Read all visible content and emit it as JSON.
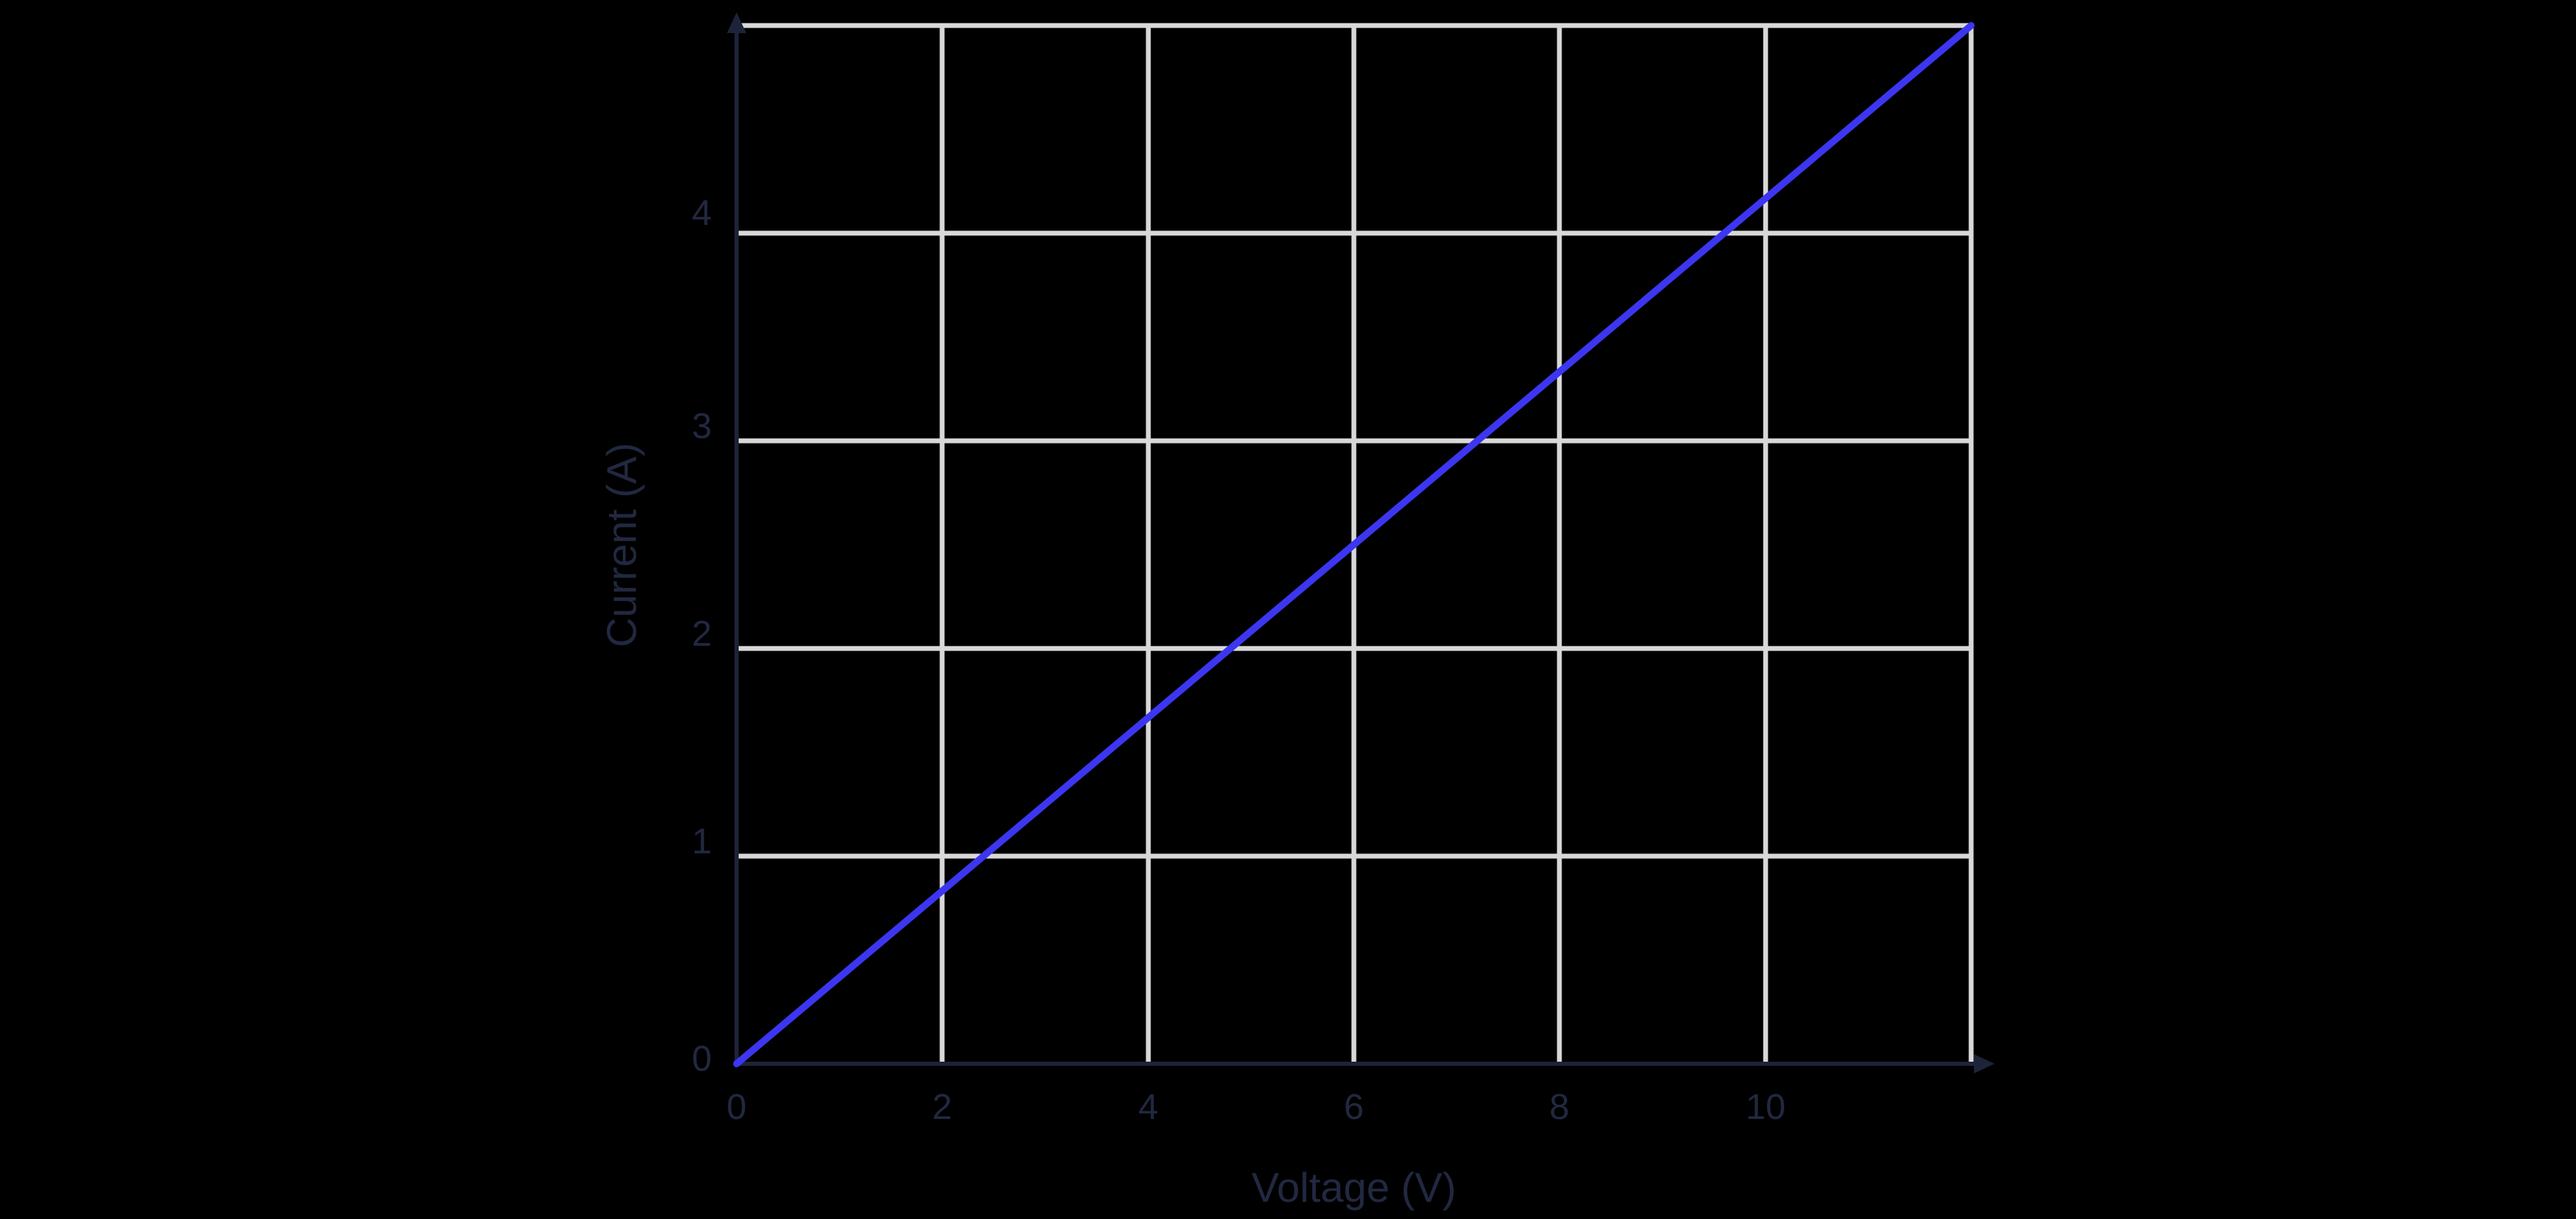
{
  "chart_data": {
    "type": "line",
    "title": "",
    "xlabel": "Voltage (V)",
    "ylabel": "Current (A)",
    "x_tick_labels": [
      "0",
      "2",
      "4",
      "6",
      "8",
      "10"
    ],
    "y_tick_labels": [
      "0",
      "1",
      "2",
      "3",
      "4"
    ],
    "xlim": [
      0,
      12
    ],
    "ylim": [
      0,
      5
    ],
    "x_gridline_step": 2,
    "y_gridline_step": 1,
    "grid": "on",
    "legend": "none",
    "colors": {
      "background": "#000000",
      "gridline": "#d8d8d8",
      "axis": "#1d2339",
      "text": "#212840",
      "line": "#3c36f1"
    },
    "series": [
      {
        "color": "#3c36f1",
        "x": [
          0,
          2,
          4,
          6,
          8,
          10,
          12
        ],
        "y": [
          0,
          0.8333,
          1.6667,
          2.5,
          3.3333,
          4.1667,
          5
        ]
      }
    ]
  }
}
